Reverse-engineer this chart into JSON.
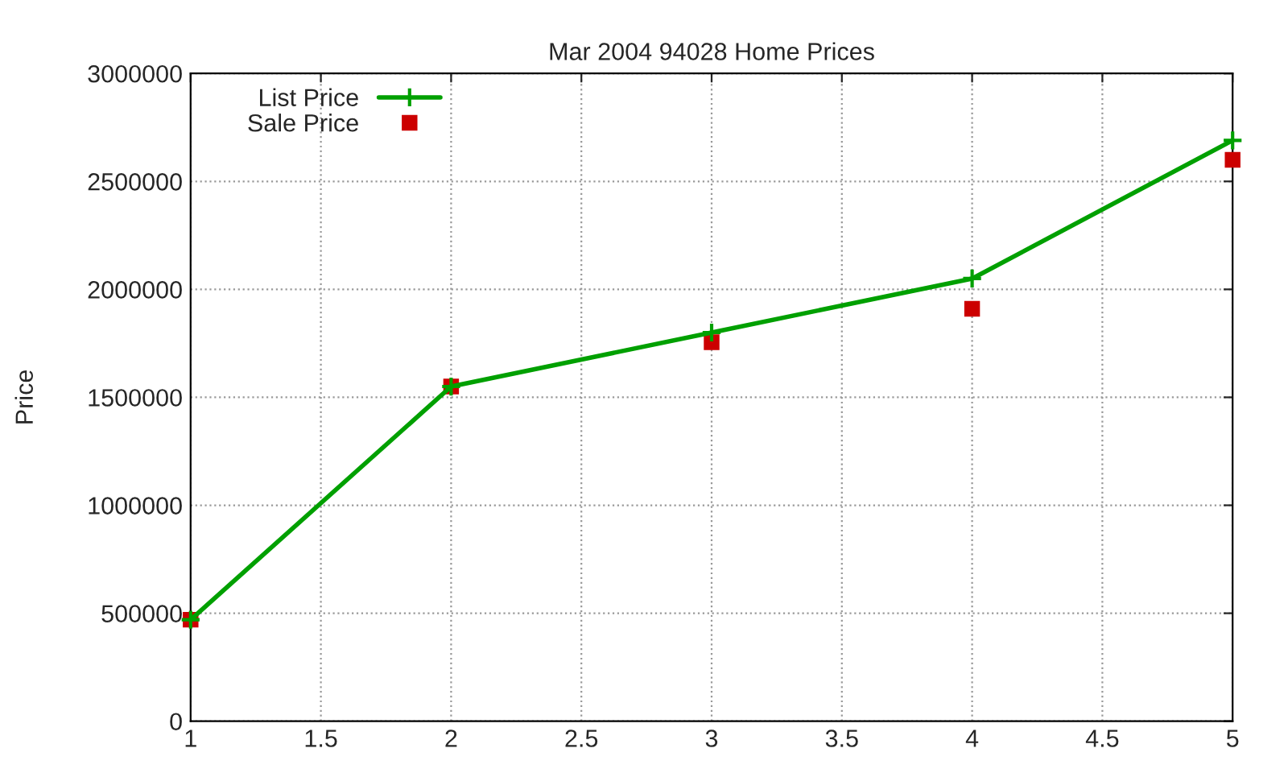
{
  "chart_data": {
    "type": "line",
    "title": "Mar 2004 94028 Home Prices",
    "ylabel": "Price",
    "x": [
      1,
      2,
      3,
      4,
      5
    ],
    "series": [
      {
        "name": "List Price",
        "color": "#00a000",
        "marker": "cross",
        "values": [
          470000,
          1550000,
          1800000,
          2050000,
          2690000
        ]
      },
      {
        "name": "Sale Price",
        "color": "#cc0000",
        "type": "scatter",
        "marker": "square",
        "values": [
          470000,
          1550000,
          1755000,
          1910000,
          2600000
        ]
      }
    ],
    "xlim": [
      1,
      5
    ],
    "xticks": [
      1,
      1.5,
      2,
      2.5,
      3,
      3.5,
      4,
      4.5,
      5
    ],
    "ylim": [
      0,
      3000000
    ],
    "yticks": [
      0,
      500000,
      1000000,
      1500000,
      2000000,
      2500000,
      3000000
    ],
    "grid": true,
    "legend": "top left"
  }
}
